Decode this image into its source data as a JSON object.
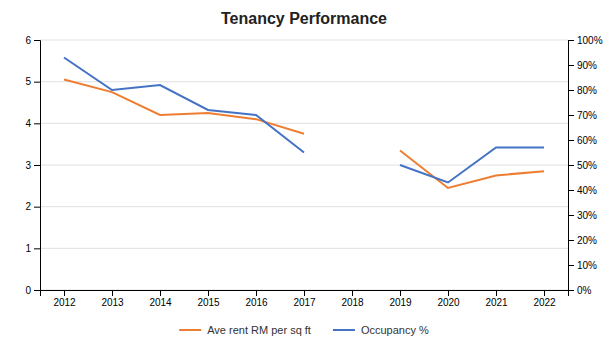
{
  "chart_data": {
    "type": "line",
    "title": "Tenancy Performance",
    "x": [
      2012,
      2013,
      2014,
      2015,
      2016,
      2017,
      2018,
      2019,
      2020,
      2021,
      2022
    ],
    "series": [
      {
        "name": "Ave rent RM per sq ft",
        "color": "#ED7D31",
        "values": [
          5.05,
          4.75,
          4.2,
          4.25,
          4.1,
          3.75,
          null,
          3.35,
          2.45,
          2.75,
          2.85
        ]
      },
      {
        "name": "Occupancy %",
        "color": "#4472C4",
        "axis": "y2",
        "values": [
          0.93,
          0.8,
          0.82,
          0.72,
          0.7,
          0.55,
          null,
          0.5,
          0.43,
          0.57,
          0.57
        ]
      }
    ],
    "xlim": [
      2011.5,
      2022.5
    ],
    "xticks": [
      2012,
      2013,
      2014,
      2015,
      2016,
      2017,
      2018,
      2019,
      2020,
      2021,
      2022
    ],
    "ylim": [
      0,
      6
    ],
    "yticks": [
      0,
      1,
      2,
      3,
      4,
      5,
      6
    ],
    "y2lim": [
      0,
      1.0
    ],
    "y2ticks": [
      {
        "value": 0.0,
        "label": "0%"
      },
      {
        "value": 0.1,
        "label": "10%"
      },
      {
        "value": 0.2,
        "label": "20%"
      },
      {
        "value": 0.3,
        "label": "30%"
      },
      {
        "value": 0.4,
        "label": "40%"
      },
      {
        "value": 0.5,
        "label": "50%"
      },
      {
        "value": 0.6,
        "label": "60%"
      },
      {
        "value": 0.7,
        "label": "70%"
      },
      {
        "value": 0.8,
        "label": "80%"
      },
      {
        "value": 0.9,
        "label": "90%"
      },
      {
        "value": 1.0,
        "label": "100%"
      }
    ],
    "grid": true,
    "legend": "bottom"
  }
}
